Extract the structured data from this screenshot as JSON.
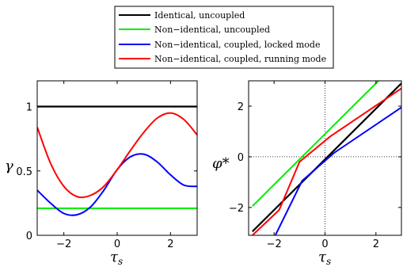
{
  "legend": {
    "entries": [
      {
        "label": "Identical, uncoupled",
        "color": "#000000"
      },
      {
        "label": "Non−identical, uncoupled",
        "color": "#00ee00"
      },
      {
        "label": "Non−identical, coupled, locked mode",
        "color": "#0000ff"
      },
      {
        "label": "Non−identical, coupled, running mode",
        "color": "#ff0000"
      }
    ],
    "placement": "top-center"
  },
  "chart_data": [
    {
      "type": "line",
      "title": "",
      "xlabel": "τ",
      "xlabel_sub": "s",
      "ylabel": "γ",
      "xlim": [
        -3,
        3
      ],
      "ylim": [
        0,
        1.2
      ],
      "xticks": [
        -2,
        0,
        2
      ],
      "yticks": [
        0,
        0.5,
        1
      ],
      "xtick_labels": [
        "−2",
        "0",
        "2"
      ],
      "ytick_labels": [
        "0",
        "0.5",
        "1"
      ],
      "grid": false,
      "series": [
        {
          "name": "Identical, uncoupled",
          "color": "#000000",
          "x": [
            -3,
            3
          ],
          "y": [
            1.0,
            1.0
          ]
        },
        {
          "name": "Non−identical, uncoupled",
          "color": "#00ee00",
          "x": [
            -3,
            3
          ],
          "y": [
            0.21,
            0.21
          ]
        },
        {
          "name": "Non−identical, coupled, locked mode",
          "color": "#0000ff",
          "x": [
            -3,
            -2.5,
            -2,
            -1.5,
            -1,
            -0.5,
            0,
            0.5,
            1,
            1.5,
            2,
            2.5,
            3
          ],
          "y": [
            0.35,
            0.25,
            0.17,
            0.16,
            0.22,
            0.35,
            0.51,
            0.61,
            0.63,
            0.57,
            0.47,
            0.39,
            0.38
          ]
        },
        {
          "name": "Non−identical, coupled, running mode",
          "color": "#ff0000",
          "x": [
            -3,
            -2.5,
            -2,
            -1.5,
            -1,
            -0.5,
            0,
            0.5,
            1,
            1.5,
            2,
            2.5,
            3
          ],
          "y": [
            0.84,
            0.56,
            0.38,
            0.3,
            0.31,
            0.38,
            0.51,
            0.66,
            0.8,
            0.91,
            0.95,
            0.9,
            0.78
          ]
        }
      ]
    },
    {
      "type": "line",
      "title": "",
      "xlabel": "τ",
      "xlabel_sub": "s",
      "ylabel": "φ*",
      "xlim": [
        -3,
        3
      ],
      "ylim": [
        -3.1,
        3
      ],
      "xticks": [
        -2,
        0,
        2
      ],
      "yticks": [
        -2,
        0,
        2
      ],
      "xtick_labels": [
        "−2",
        "0",
        "2"
      ],
      "ytick_labels": [
        "−2",
        "0",
        "2"
      ],
      "grid": false,
      "reference_lines": {
        "x": 0,
        "y": 0,
        "style": "dotted"
      },
      "series": [
        {
          "name": "Identical, uncoupled",
          "color": "#000000",
          "x": [
            -2.85,
            3
          ],
          "y": [
            -2.95,
            2.9
          ]
        },
        {
          "name": "Non−identical, uncoupled",
          "color": "#00ee00",
          "x": [
            -2.85,
            2.1
          ],
          "y": [
            -1.95,
            3.0
          ]
        },
        {
          "name": "Non−identical, coupled, locked mode",
          "color": "#0000ff",
          "x": [
            -1.95,
            -0.9,
            0.35,
            3
          ],
          "y": [
            -3.1,
            -0.95,
            0.15,
            1.95
          ]
        },
        {
          "name": "Non−identical, coupled, running mode",
          "color": "#ff0000",
          "x": [
            -2.85,
            -1.8,
            -1.0,
            0.2,
            3
          ],
          "y": [
            -3.1,
            -2.1,
            -0.2,
            0.8,
            2.7
          ]
        }
      ]
    }
  ]
}
